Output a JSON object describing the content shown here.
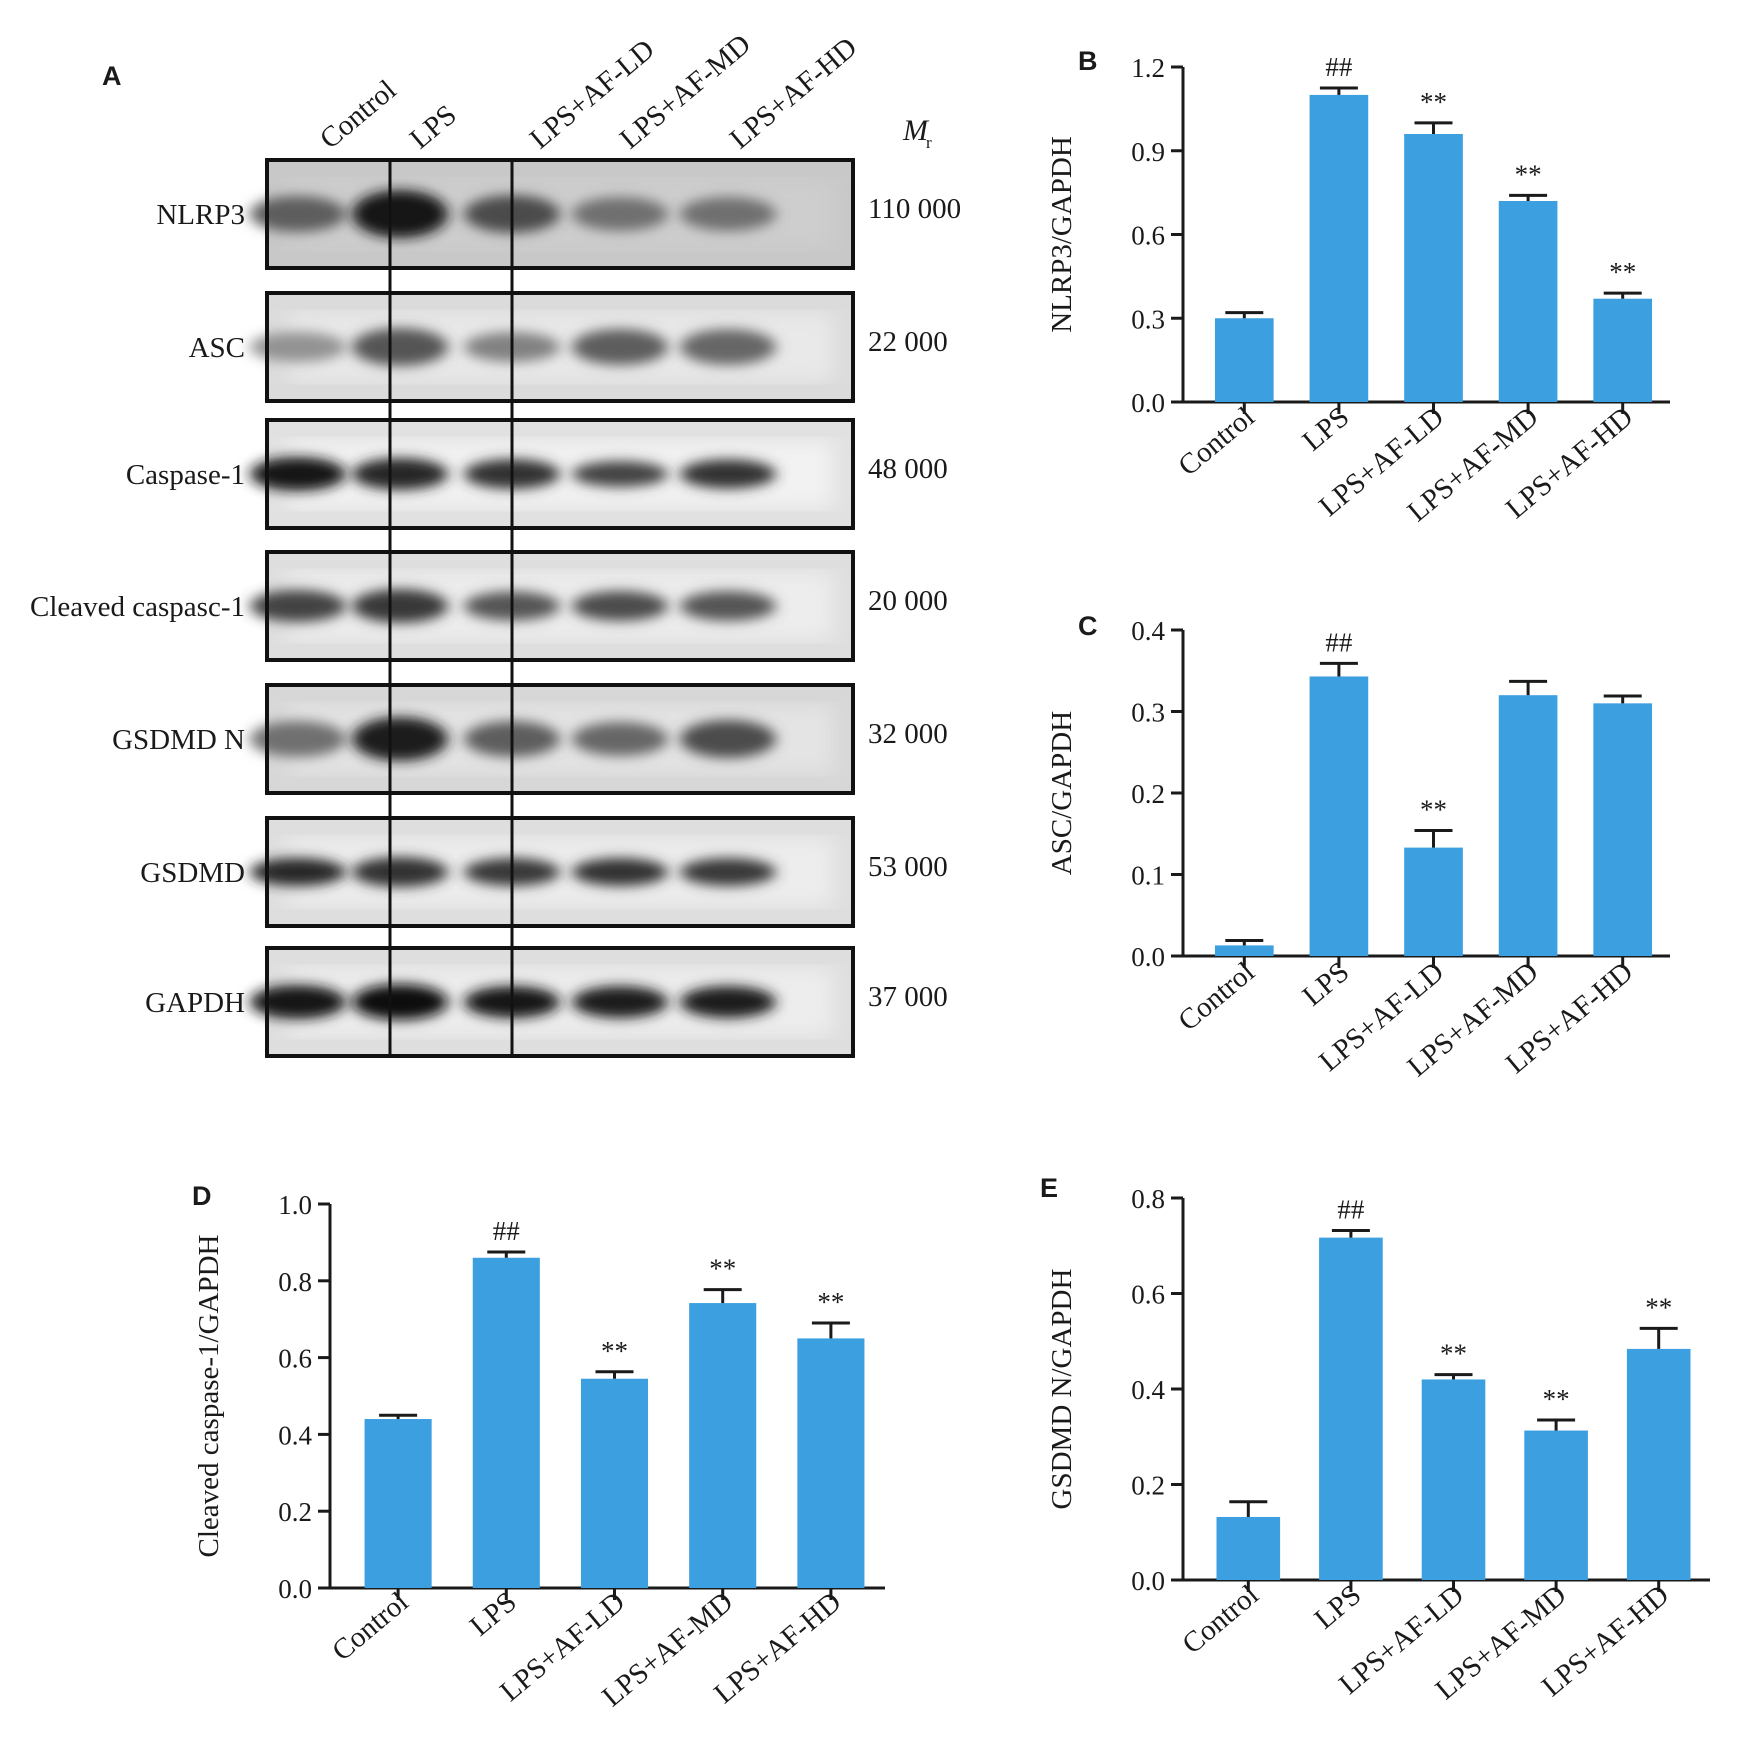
{
  "blot": {
    "panel_label": "A",
    "lanes": [
      "Control",
      "LPS",
      "LPS+AF-LD",
      "LPS+AF-MD",
      "LPS+AF-HD"
    ],
    "mr_label": "M",
    "mr_subscript": "r",
    "rows": [
      {
        "protein": "NLRP3",
        "mw": "110 000",
        "intensity": [
          0.55,
          0.95,
          0.65,
          0.45,
          0.45
        ],
        "thick": [
          0.55,
          0.85,
          0.6,
          0.5,
          0.5
        ],
        "bg": 0.55
      },
      {
        "protein": "ASC",
        "mw": "22 000",
        "intensity": [
          0.25,
          0.6,
          0.35,
          0.55,
          0.5
        ],
        "thick": [
          0.4,
          0.6,
          0.4,
          0.55,
          0.55
        ],
        "bg": 0.25
      },
      {
        "protein": "Caspase-1",
        "mw": "48 000",
        "intensity": [
          0.95,
          0.85,
          0.8,
          0.7,
          0.8
        ],
        "thick": [
          0.5,
          0.45,
          0.4,
          0.3,
          0.38
        ],
        "bg": 0.15
      },
      {
        "protein": "Cleaved caspasc-1",
        "mw": "20 000",
        "intensity": [
          0.7,
          0.75,
          0.6,
          0.65,
          0.6
        ],
        "thick": [
          0.45,
          0.5,
          0.38,
          0.4,
          0.4
        ],
        "bg": 0.2
      },
      {
        "protein": "GSDMD N",
        "mw": "32 000",
        "intensity": [
          0.45,
          0.9,
          0.55,
          0.5,
          0.65
        ],
        "thick": [
          0.55,
          0.75,
          0.55,
          0.5,
          0.6
        ],
        "bg": 0.3
      },
      {
        "protein": "GSDMD",
        "mw": "53 000",
        "intensity": [
          0.85,
          0.8,
          0.75,
          0.8,
          0.75
        ],
        "thick": [
          0.35,
          0.4,
          0.35,
          0.35,
          0.35
        ],
        "bg": 0.2
      },
      {
        "protein": "GAPDH",
        "mw": "37 000",
        "intensity": [
          0.95,
          1.0,
          0.95,
          0.9,
          0.9
        ],
        "thick": [
          0.5,
          0.55,
          0.45,
          0.45,
          0.45
        ],
        "bg": 0.2
      }
    ]
  },
  "colors": {
    "bar": "#3b9fe0",
    "axis": "#1a1a1a",
    "text": "#1a1a1a"
  },
  "chart_data": [
    {
      "id": "B",
      "type": "bar",
      "panel_label": "B",
      "ylabel": "NLRP3/GAPDH",
      "categories": [
        "Control",
        "LPS",
        "LPS+AF-LD",
        "LPS+AF-MD",
        "LPS+AF-HD"
      ],
      "values": [
        0.3,
        1.1,
        0.96,
        0.72,
        0.37
      ],
      "errors": [
        0.02,
        0.025,
        0.04,
        0.02,
        0.02
      ],
      "annotations": [
        "",
        "##",
        "**",
        "**",
        "**"
      ],
      "ylim": [
        0,
        1.2
      ],
      "yticks": [
        "0.0",
        "0.3",
        "0.6",
        "0.9",
        "1.2"
      ],
      "grid": false
    },
    {
      "id": "C",
      "type": "bar",
      "panel_label": "C",
      "ylabel": "ASC/GAPDH",
      "categories": [
        "Control",
        "LPS",
        "LPS+AF-LD",
        "LPS+AF-MD",
        "LPS+AF-HD"
      ],
      "values": [
        0.013,
        0.343,
        0.133,
        0.32,
        0.31
      ],
      "errors": [
        0.006,
        0.016,
        0.021,
        0.017,
        0.009
      ],
      "annotations": [
        "",
        "##",
        "**",
        "",
        ""
      ],
      "ylim": [
        0,
        0.4
      ],
      "yticks": [
        "0.0",
        "0.1",
        "0.2",
        "0.3",
        "0.4"
      ],
      "grid": false
    },
    {
      "id": "D",
      "type": "bar",
      "panel_label": "D",
      "ylabel": "Cleaved caspase-1/GAPDH",
      "categories": [
        "Control",
        "LPS",
        "LPS+AF-LD",
        "LPS+AF-MD",
        "LPS+AF-HD"
      ],
      "values": [
        0.44,
        0.86,
        0.545,
        0.742,
        0.65
      ],
      "errors": [
        0.01,
        0.015,
        0.018,
        0.035,
        0.04
      ],
      "annotations": [
        "",
        "##",
        "**",
        "**",
        "**"
      ],
      "ylim": [
        0,
        1.0
      ],
      "yticks": [
        "0.0",
        "0.2",
        "0.4",
        "0.6",
        "0.8",
        "1.0"
      ],
      "grid": false
    },
    {
      "id": "E",
      "type": "bar",
      "panel_label": "E",
      "ylabel": "GSDMD N/GAPDH",
      "categories": [
        "Control",
        "LPS",
        "LPS+AF-LD",
        "LPS+AF-MD",
        "LPS+AF-HD"
      ],
      "values": [
        0.132,
        0.717,
        0.42,
        0.313,
        0.484
      ],
      "errors": [
        0.032,
        0.015,
        0.01,
        0.022,
        0.043
      ],
      "annotations": [
        "",
        "##",
        "**",
        "**",
        "**"
      ],
      "ylim": [
        0,
        0.8
      ],
      "yticks": [
        "0.0",
        "0.2",
        "0.4",
        "0.6",
        "0.8"
      ],
      "grid": false
    }
  ]
}
